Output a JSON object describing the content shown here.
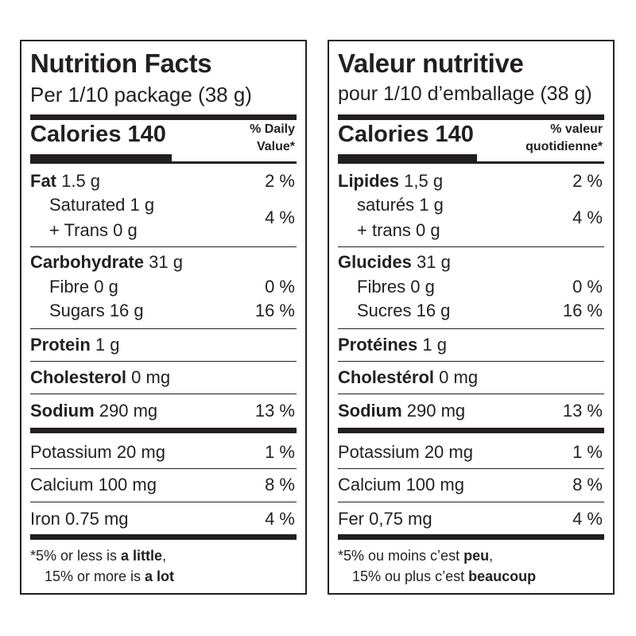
{
  "en": {
    "title": "Nutrition Facts",
    "serving": "Per 1/10 package (38 g)",
    "calories": "Calories 140",
    "dv_header_1": "% Daily",
    "dv_header_2": "Value*",
    "fat_label": "Fat",
    "fat_amount": " 1.5 g",
    "fat_dv": "2 %",
    "saturated": "Saturated 1 g",
    "trans": "+ Trans 0 g",
    "sat_trans_dv": "4 %",
    "carb_label": "Carbohydrate",
    "carb_amount": " 31 g",
    "fibre": "Fibre 0 g",
    "fibre_dv": "0 %",
    "sugars": "Sugars 16 g",
    "sugars_dv": "16 %",
    "protein_label": "Protein",
    "protein_amount": " 1 g",
    "cholesterol_label": "Cholesterol",
    "cholesterol_amount": " 0 mg",
    "sodium_label": "Sodium",
    "sodium_amount": " 290 mg",
    "sodium_dv": "13 %",
    "potassium": "Potassium 20 mg",
    "potassium_dv": "1 %",
    "calcium": "Calcium 100 mg",
    "calcium_dv": "8 %",
    "iron": "Iron 0.75 mg",
    "iron_dv": "4 %",
    "foot_1a": "*5% or less is ",
    "foot_1b": "a little",
    "foot_1c": ",",
    "foot_2a": "15% or more is ",
    "foot_2b": "a lot"
  },
  "fr": {
    "title": "Valeur nutritive",
    "serving": "pour 1/10 d’emballage (38 g)",
    "calories": "Calories 140",
    "dv_header_1": "% valeur",
    "dv_header_2": "quotidienne*",
    "fat_label": "Lipides",
    "fat_amount": " 1,5 g",
    "fat_dv": "2 %",
    "saturated": "saturés 1 g",
    "trans": "+ trans 0 g",
    "sat_trans_dv": "4 %",
    "carb_label": "Glucides",
    "carb_amount": " 31 g",
    "fibre": "Fibres 0 g",
    "fibre_dv": "0 %",
    "sugars": "Sucres 16 g",
    "sugars_dv": "16 %",
    "protein_label": "Protéines",
    "protein_amount": " 1 g",
    "cholesterol_label": "Cholestérol",
    "cholesterol_amount": " 0 mg",
    "sodium_label": "Sodium",
    "sodium_amount": " 290 mg",
    "sodium_dv": "13 %",
    "potassium": "Potassium 20 mg",
    "potassium_dv": "1 %",
    "calcium": "Calcium 100 mg",
    "calcium_dv": "8 %",
    "iron": "Fer 0,75 mg",
    "iron_dv": "4 %",
    "foot_1a": "*5% ou moins c’est ",
    "foot_1b": "peu",
    "foot_1c": ",",
    "foot_2a": "15% ou plus c’est ",
    "foot_2b": "beaucoup"
  }
}
